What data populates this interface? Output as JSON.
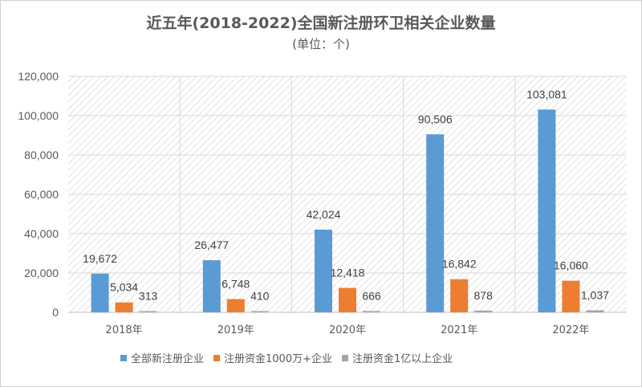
{
  "chart_data": {
    "type": "bar",
    "title": "近五年(2018-2022)全国新注册环卫相关企业数量",
    "subtitle": "(单位：个)",
    "categories": [
      "2018年",
      "2019年",
      "2020年",
      "2021年",
      "2022年"
    ],
    "series": [
      {
        "name": "全部新注册企业",
        "color": "#5b9bd5",
        "values": [
          19672,
          26477,
          42024,
          90506,
          103081
        ],
        "labels": [
          "19,672",
          "26,477",
          "42,024",
          "90,506",
          "103,081"
        ]
      },
      {
        "name": "注册资金1000万+企业",
        "color": "#ed7d31",
        "values": [
          5034,
          6748,
          12418,
          16842,
          16060
        ],
        "labels": [
          "5,034",
          "6,748",
          "12,418",
          "16,842",
          "16,060"
        ]
      },
      {
        "name": "注册资金1亿以上企业",
        "color": "#a5a5a5",
        "values": [
          313,
          410,
          666,
          878,
          1037
        ],
        "labels": [
          "313",
          "410",
          "666",
          "878",
          "1,037"
        ]
      }
    ],
    "yticks": [
      "0",
      "20,000",
      "40,000",
      "60,000",
      "80,000",
      "100,000",
      "120,000"
    ],
    "ylim": [
      0,
      120000
    ],
    "legend_position": "bottom",
    "plot_background": "diagonal-hatch"
  }
}
